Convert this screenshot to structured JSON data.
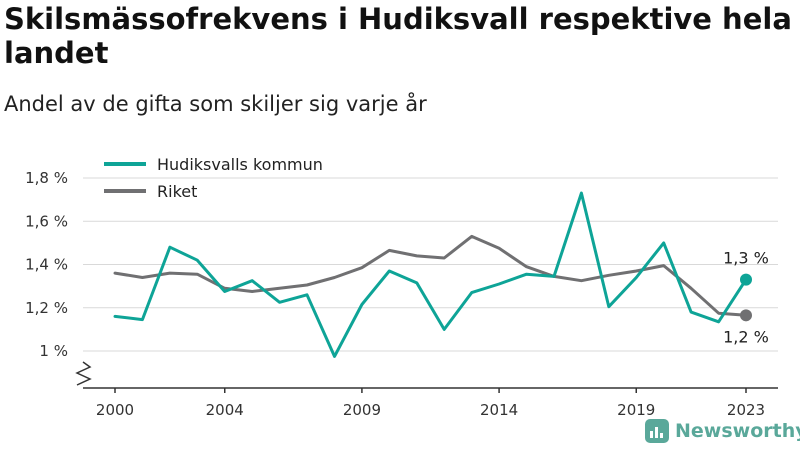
{
  "title": "Skilsmässofrekvens i Hudiksvall respektive hela landet",
  "subtitle": "Andel av de gifta som skiljer sig varje år",
  "brand": {
    "name": "Newsworthy",
    "icon": "bar-chart-icon"
  },
  "chart_data": {
    "type": "line",
    "x": [
      2000,
      2001,
      2002,
      2003,
      2004,
      2005,
      2006,
      2007,
      2008,
      2009,
      2010,
      2011,
      2012,
      2013,
      2014,
      2015,
      2016,
      2017,
      2018,
      2019,
      2020,
      2021,
      2022,
      2023
    ],
    "xticks": [
      "2000",
      "2004",
      "2009",
      "2014",
      "2019",
      "2023"
    ],
    "yticks": [
      "1 %",
      "1,2 %",
      "1,4 %",
      "1,6 %",
      "1,8 %"
    ],
    "ylim": [
      0.88,
      1.8
    ],
    "grid": true,
    "legend_position": "top-left",
    "series": [
      {
        "name": "Hudiksvalls kommun",
        "color": "#0ea497",
        "values": [
          1.16,
          1.145,
          1.48,
          1.42,
          1.275,
          1.325,
          1.225,
          1.26,
          0.975,
          1.215,
          1.37,
          1.315,
          1.1,
          1.27,
          1.31,
          1.355,
          1.345,
          1.73,
          1.205,
          1.34,
          1.5,
          1.18,
          1.135,
          1.33
        ],
        "end_label": "1,3 %"
      },
      {
        "name": "Riket",
        "color": "#707072",
        "values": [
          1.36,
          1.34,
          1.36,
          1.355,
          1.29,
          1.275,
          1.29,
          1.305,
          1.34,
          1.385,
          1.465,
          1.44,
          1.43,
          1.53,
          1.475,
          1.39,
          1.345,
          1.325,
          1.35,
          1.37,
          1.395,
          1.29,
          1.175,
          1.165
        ],
        "end_label": "1,2 %"
      }
    ]
  }
}
